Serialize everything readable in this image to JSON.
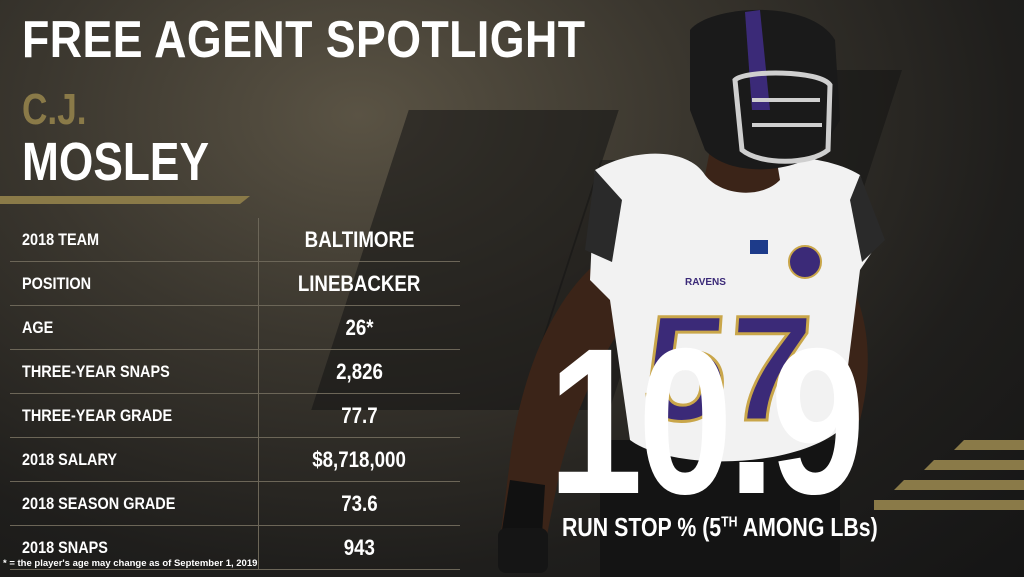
{
  "header": {
    "title": "FREE AGENT SPOTLIGHT",
    "first_name": "C.J.",
    "last_name": "MOSLEY"
  },
  "stats": [
    {
      "label": "2018 TEAM",
      "value": "BALTIMORE"
    },
    {
      "label": "POSITION",
      "value": "LINEBACKER"
    },
    {
      "label": "AGE",
      "value": "26*"
    },
    {
      "label": "THREE-YEAR SNAPS",
      "value": "2,826"
    },
    {
      "label": "THREE-YEAR GRADE",
      "value": "77.7"
    },
    {
      "label": "2018 SALARY",
      "value": "$8,718,000"
    },
    {
      "label": "2018 SEASON GRADE",
      "value": "73.6"
    },
    {
      "label": "2018 SNAPS",
      "value": "943"
    }
  ],
  "footnote": "* = the player's age may change as of September 1, 2019",
  "highlight": {
    "value": "10.9",
    "label_prefix": "RUN STOP % (5",
    "label_sup": "TH",
    "label_suffix": " AMONG LBs)"
  },
  "player_graphic": {
    "jersey_number": "57",
    "team_wordmark": "RAVENS"
  },
  "colors": {
    "gold": "#8a7a48",
    "purple": "#3b2a78",
    "white": "#ffffff",
    "dark": "#1b1b1b"
  }
}
